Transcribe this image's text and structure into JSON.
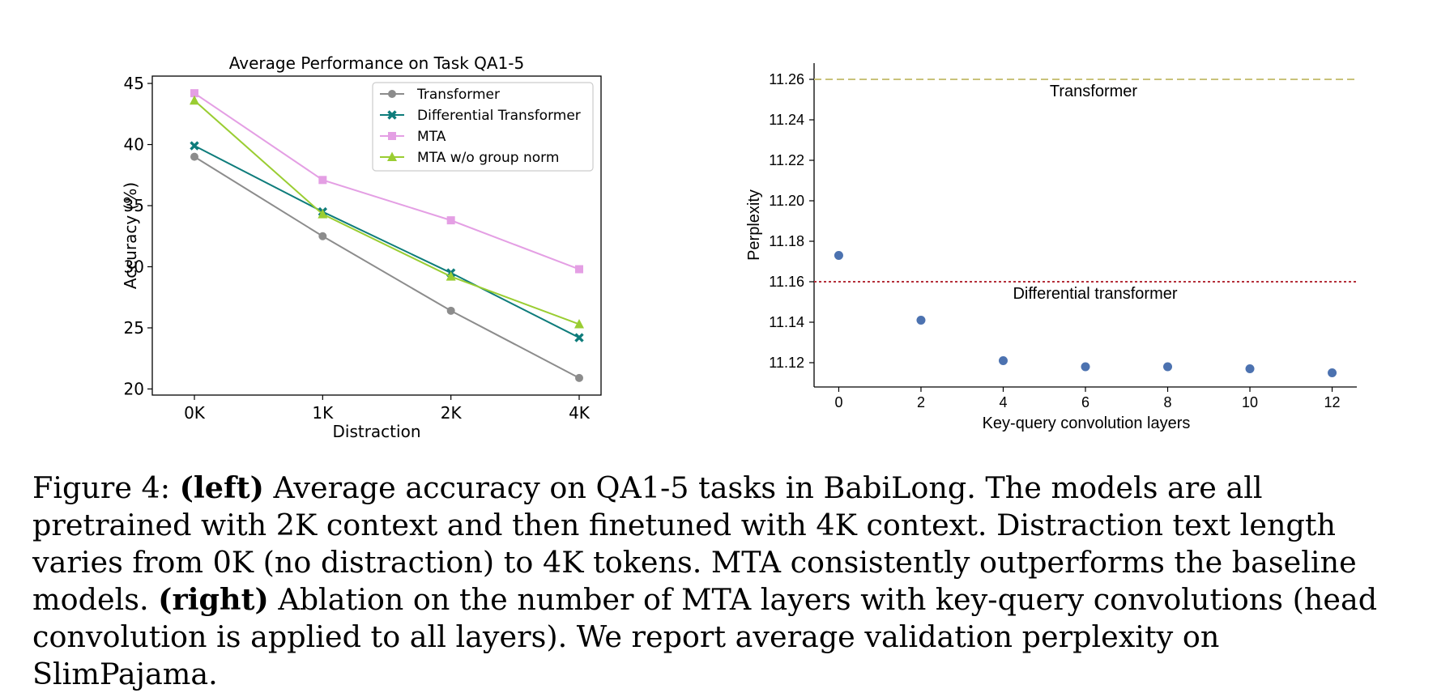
{
  "chart_data": [
    {
      "type": "line",
      "title": "Average Performance on Task QA1-5",
      "xlabel": "Distraction",
      "ylabel": "Accuracy (%)",
      "categories": [
        "0K",
        "1K",
        "2K",
        "4K"
      ],
      "ylim": [
        19.5,
        45.6
      ],
      "yticks": [
        "20",
        "25",
        "30",
        "35",
        "40",
        "45"
      ],
      "legend_position": "upper-right",
      "grid": false,
      "series": [
        {
          "name": "Transformer",
          "values": [
            39.0,
            32.5,
            26.4,
            20.9
          ],
          "color": "#8c8c8c",
          "marker": "circle"
        },
        {
          "name": "Differential Transformer",
          "values": [
            39.9,
            34.5,
            29.5,
            24.2
          ],
          "color": "#0e7c7b",
          "marker": "x"
        },
        {
          "name": "MTA",
          "values": [
            44.2,
            37.1,
            33.8,
            29.8
          ],
          "color": "#e49fe4",
          "marker": "square"
        },
        {
          "name": "MTA w/o group norm",
          "values": [
            43.6,
            34.3,
            29.2,
            25.3
          ],
          "color": "#9acd32",
          "marker": "triangle"
        }
      ]
    },
    {
      "type": "scatter",
      "title": "",
      "xlabel": "Key-query convolution layers",
      "ylabel": "Perplexity",
      "xticks": [
        "0",
        "2",
        "4",
        "6",
        "8",
        "10",
        "12"
      ],
      "yticks": [
        "11.12",
        "11.14",
        "11.16",
        "11.18",
        "11.20",
        "11.22",
        "11.24",
        "11.26"
      ],
      "xlim": [
        -0.6,
        12.6
      ],
      "ylim": [
        11.108,
        11.268
      ],
      "grid": false,
      "points": {
        "x": [
          0,
          2,
          4,
          6,
          8,
          10,
          12
        ],
        "y": [
          11.173,
          11.141,
          11.121,
          11.118,
          11.118,
          11.117,
          11.115
        ],
        "color": "#4c72b0"
      },
      "reference_lines": [
        {
          "label": "Transformer",
          "value": 11.26,
          "color": "#c9c27a",
          "style": "dashed"
        },
        {
          "label": "Differential transformer",
          "value": 11.16,
          "color": "#b5303a",
          "style": "dotted"
        }
      ]
    }
  ],
  "caption": {
    "prefix": "Figure 4: ",
    "left_tag": "(left)",
    "part1": " Average accuracy on QA1-5 tasks in BabiLong. The models are all pretrained with 2K context and then finetuned with 4K context. Distraction text length varies from 0K (no distraction) to 4K tokens. MTA consistently outperforms the baseline models. ",
    "right_tag": "(right)",
    "part2": " Ablation on the number of MTA layers with key-query convolutions (head convolution is applied to all layers). We report average validation perplexity on SlimPajama."
  }
}
